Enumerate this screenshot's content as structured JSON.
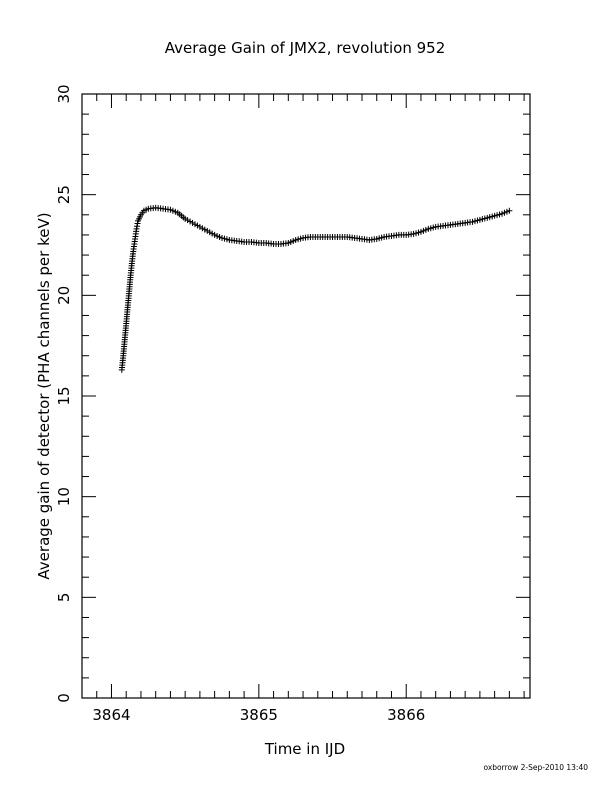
{
  "chart_data": {
    "type": "scatter",
    "title": "Average Gain of JMX2, revolution 952",
    "xlabel": "Time in IJD",
    "ylabel": "Average gain of detector (PHA channels per keV)",
    "xlim": [
      3863.8,
      3866.84
    ],
    "ylim": [
      0,
      30
    ],
    "x_ticks": [
      "3864",
      "3865",
      "3866"
    ],
    "y_ticks": [
      "0",
      "5",
      "10",
      "15",
      "20",
      "25",
      "30"
    ],
    "marker": "plus",
    "grid": false,
    "series": [
      {
        "points": [
          [
            3864.07,
            16.3
          ],
          [
            3864.08,
            17.0
          ],
          [
            3864.09,
            17.8
          ],
          [
            3864.1,
            18.6
          ],
          [
            3864.11,
            19.4
          ],
          [
            3864.12,
            20.2
          ],
          [
            3864.13,
            21.0
          ],
          [
            3864.14,
            21.7
          ],
          [
            3864.15,
            22.3
          ],
          [
            3864.16,
            22.8
          ],
          [
            3864.17,
            23.3
          ],
          [
            3864.18,
            23.7
          ],
          [
            3864.2,
            24.0
          ],
          [
            3864.22,
            24.2
          ],
          [
            3864.25,
            24.3
          ],
          [
            3864.3,
            24.35
          ],
          [
            3864.35,
            24.3
          ],
          [
            3864.4,
            24.25
          ],
          [
            3864.45,
            24.1
          ],
          [
            3864.5,
            23.8
          ],
          [
            3864.55,
            23.6
          ],
          [
            3864.6,
            23.4
          ],
          [
            3864.65,
            23.2
          ],
          [
            3864.7,
            23.0
          ],
          [
            3864.75,
            22.85
          ],
          [
            3864.8,
            22.75
          ],
          [
            3864.85,
            22.7
          ],
          [
            3864.9,
            22.65
          ],
          [
            3864.95,
            22.65
          ],
          [
            3865.0,
            22.6
          ],
          [
            3865.05,
            22.6
          ],
          [
            3865.1,
            22.55
          ],
          [
            3865.15,
            22.55
          ],
          [
            3865.2,
            22.6
          ],
          [
            3865.25,
            22.75
          ],
          [
            3865.3,
            22.85
          ],
          [
            3865.35,
            22.9
          ],
          [
            3865.4,
            22.9
          ],
          [
            3865.45,
            22.9
          ],
          [
            3865.5,
            22.9
          ],
          [
            3865.55,
            22.9
          ],
          [
            3865.6,
            22.9
          ],
          [
            3865.65,
            22.85
          ],
          [
            3865.7,
            22.8
          ],
          [
            3865.75,
            22.75
          ],
          [
            3865.8,
            22.8
          ],
          [
            3865.85,
            22.9
          ],
          [
            3865.9,
            22.95
          ],
          [
            3865.95,
            23.0
          ],
          [
            3866.0,
            23.0
          ],
          [
            3866.05,
            23.05
          ],
          [
            3866.1,
            23.15
          ],
          [
            3866.15,
            23.3
          ],
          [
            3866.2,
            23.4
          ],
          [
            3866.25,
            23.45
          ],
          [
            3866.3,
            23.5
          ],
          [
            3866.35,
            23.55
          ],
          [
            3866.4,
            23.6
          ],
          [
            3866.45,
            23.65
          ],
          [
            3866.5,
            23.75
          ],
          [
            3866.55,
            23.85
          ],
          [
            3866.6,
            23.95
          ],
          [
            3866.65,
            24.05
          ],
          [
            3866.7,
            24.2
          ]
        ]
      }
    ]
  },
  "footer": {
    "credit": "oxborrow  2-Sep-2010 13:40"
  }
}
